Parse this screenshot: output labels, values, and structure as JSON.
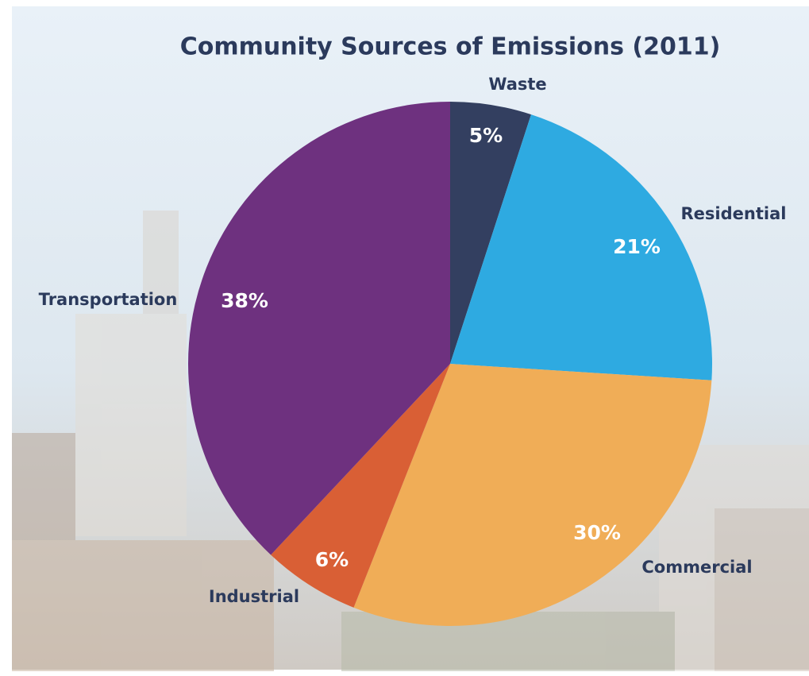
{
  "chart_data": {
    "type": "pie",
    "title": "Community Sources of Emissions (2011)",
    "categories": [
      "Waste",
      "Residential",
      "Commercial",
      "Industrial",
      "Transportation"
    ],
    "values": [
      5,
      21,
      30,
      6,
      38
    ],
    "value_labels": [
      "5%",
      "21%",
      "30%",
      "6%",
      "38%"
    ],
    "colors": [
      "#333f60",
      "#2eaae1",
      "#f0ad57",
      "#d95f35",
      "#6e317f"
    ]
  }
}
